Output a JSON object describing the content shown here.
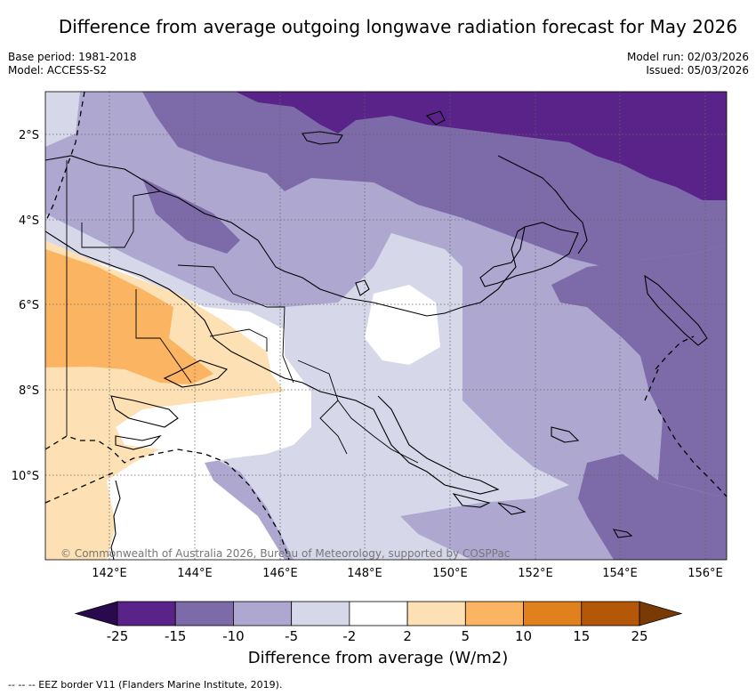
{
  "title": "Difference from average outgoing longwave radiation forecast for May 2026",
  "header": {
    "base_period": "Base period: 1981-2018",
    "model": "Model: ACCESS-S2",
    "model_run": "Model run: 02/03/2026",
    "issued": "Issued: 05/03/2026"
  },
  "map": {
    "lat_labels": [
      "2°S",
      "4°S",
      "6°S",
      "8°S",
      "10°S"
    ],
    "lon_labels": [
      "142°E",
      "144°E",
      "146°E",
      "148°E",
      "150°E",
      "152°E",
      "154°E",
      "156°E"
    ],
    "copyright": "© Commonwealth of Australia 2026, Bureau of Meteorology, supported by COSPPac"
  },
  "colorbar": {
    "title": "Difference from average (W/m2)",
    "ticks": [
      "-25",
      "-15",
      "-10",
      "-5",
      "-2",
      "2",
      "5",
      "10",
      "15",
      "25"
    ],
    "colors": [
      "#2a0a4e",
      "#5a2389",
      "#7d6aa9",
      "#aea8d1",
      "#d7d7ea",
      "#ffffff",
      "#fde0b4",
      "#fbb562",
      "#e0811d",
      "#b45708",
      "#7a3a05"
    ]
  },
  "footnote": "-- -- -- EEZ border V11 (Flanders Marine Institute, 2019)."
}
